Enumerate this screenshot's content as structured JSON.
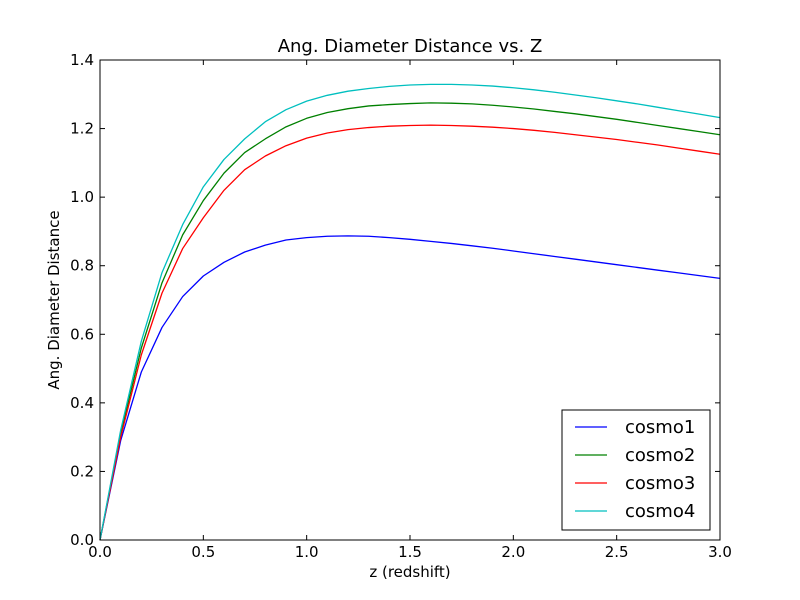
{
  "chart_data": {
    "type": "line",
    "title": "Ang. Diameter Distance vs. Z",
    "xlabel": "z (redshift)",
    "ylabel": "Ang. Diameter Distance",
    "xlim": [
      0.0,
      3.0
    ],
    "ylim": [
      0.0,
      1.4
    ],
    "xticks": [
      0.0,
      0.5,
      1.0,
      1.5,
      2.0,
      2.5,
      3.0
    ],
    "xtick_labels": [
      "0.0",
      "0.5",
      "1.0",
      "1.5",
      "2.0",
      "2.5",
      "3.0"
    ],
    "yticks": [
      0.0,
      0.2,
      0.4,
      0.6,
      0.8,
      1.0,
      1.2,
      1.4
    ],
    "ytick_labels": [
      "0.0",
      "0.2",
      "0.4",
      "0.6",
      "0.8",
      "1.0",
      "1.2",
      "1.4"
    ],
    "grid": false,
    "legend_position": "lower-right",
    "x": [
      0.0,
      0.1,
      0.2,
      0.3,
      0.4,
      0.5,
      0.6,
      0.7,
      0.8,
      0.9,
      1.0,
      1.1,
      1.2,
      1.3,
      1.4,
      1.5,
      1.6,
      1.7,
      1.8,
      1.9,
      2.0,
      2.1,
      2.2,
      2.3,
      2.4,
      2.5,
      2.6,
      2.7,
      2.8,
      2.9,
      3.0
    ],
    "series": [
      {
        "name": "cosmo1",
        "color": "#0000ff",
        "values": [
          0.0,
          0.29,
          0.49,
          0.62,
          0.71,
          0.77,
          0.81,
          0.84,
          0.86,
          0.875,
          0.882,
          0.886,
          0.887,
          0.886,
          0.882,
          0.877,
          0.871,
          0.865,
          0.858,
          0.851,
          0.843,
          0.835,
          0.827,
          0.819,
          0.811,
          0.803,
          0.795,
          0.787,
          0.779,
          0.771,
          0.763
        ]
      },
      {
        "name": "cosmo2",
        "color": "#008000",
        "values": [
          0.0,
          0.31,
          0.56,
          0.75,
          0.89,
          0.99,
          1.07,
          1.13,
          1.17,
          1.205,
          1.23,
          1.247,
          1.258,
          1.266,
          1.27,
          1.273,
          1.275,
          1.274,
          1.272,
          1.268,
          1.263,
          1.257,
          1.25,
          1.243,
          1.235,
          1.227,
          1.218,
          1.209,
          1.2,
          1.191,
          1.182
        ]
      },
      {
        "name": "cosmo3",
        "color": "#ff0000",
        "values": [
          0.0,
          0.3,
          0.54,
          0.72,
          0.85,
          0.94,
          1.02,
          1.08,
          1.12,
          1.15,
          1.172,
          1.187,
          1.197,
          1.203,
          1.207,
          1.209,
          1.21,
          1.209,
          1.207,
          1.204,
          1.2,
          1.195,
          1.189,
          1.182,
          1.175,
          1.168,
          1.16,
          1.152,
          1.143,
          1.134,
          1.125
        ]
      },
      {
        "name": "cosmo4",
        "color": "#00bfbf",
        "values": [
          0.0,
          0.32,
          0.58,
          0.78,
          0.92,
          1.03,
          1.11,
          1.17,
          1.22,
          1.255,
          1.28,
          1.297,
          1.309,
          1.317,
          1.323,
          1.327,
          1.329,
          1.329,
          1.327,
          1.324,
          1.319,
          1.313,
          1.306,
          1.298,
          1.29,
          1.281,
          1.272,
          1.262,
          1.252,
          1.242,
          1.232
        ]
      }
    ]
  }
}
